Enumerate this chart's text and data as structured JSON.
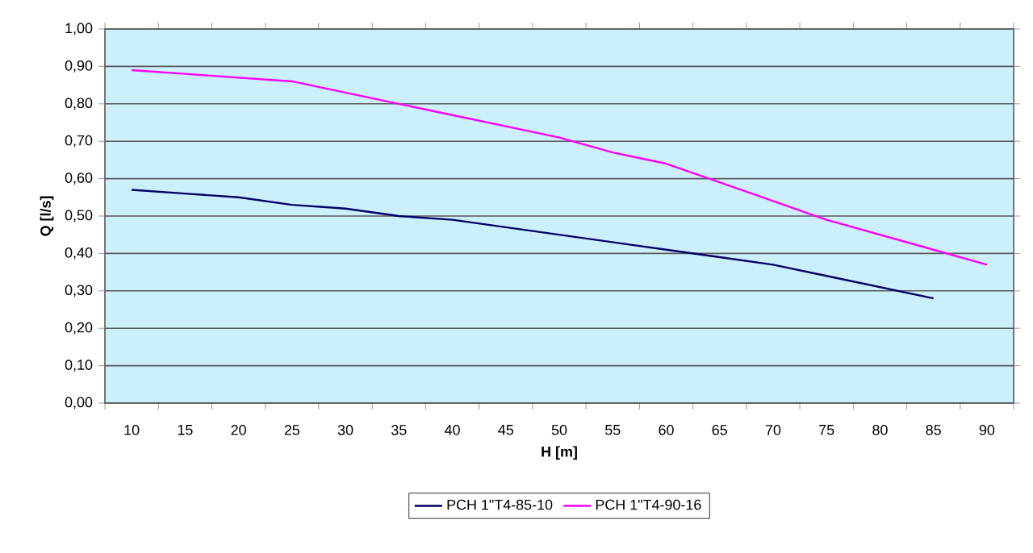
{
  "chart_data": {
    "type": "line",
    "xlabel": "H [m]",
    "ylabel": "Q [l/s]",
    "categories": [
      "10",
      "15",
      "20",
      "25",
      "30",
      "35",
      "40",
      "45",
      "50",
      "55",
      "60",
      "65",
      "70",
      "75",
      "80",
      "85",
      "90"
    ],
    "series": [
      {
        "name": "PCH 1\"T4-85-10",
        "color": "#000066",
        "values": [
          0.57,
          0.56,
          0.55,
          0.53,
          0.52,
          0.5,
          0.49,
          0.47,
          0.45,
          0.43,
          0.41,
          0.39,
          0.37,
          0.34,
          0.31,
          0.28,
          null
        ]
      },
      {
        "name": "PCH 1\"T4-90-16",
        "color": "#ff00ff",
        "values": [
          0.89,
          0.88,
          0.87,
          0.86,
          0.83,
          0.8,
          0.77,
          0.74,
          0.71,
          0.67,
          0.64,
          0.59,
          0.54,
          0.49,
          0.45,
          0.41,
          0.37
        ]
      }
    ],
    "ylim": [
      0,
      1
    ],
    "yticks": [
      {
        "value": 0,
        "label": "0,00"
      },
      {
        "value": 0.1,
        "label": "0,10"
      },
      {
        "value": 0.2,
        "label": "0,20"
      },
      {
        "value": 0.3,
        "label": "0,30"
      },
      {
        "value": 0.4,
        "label": "0,40"
      },
      {
        "value": 0.5,
        "label": "0,50"
      },
      {
        "value": 0.6,
        "label": "0,60"
      },
      {
        "value": 0.7,
        "label": "0,70"
      },
      {
        "value": 0.8,
        "label": "0,80"
      },
      {
        "value": 0.9,
        "label": "0,90"
      },
      {
        "value": 1,
        "label": "1,00"
      }
    ],
    "grid": "y",
    "legend": "bottom",
    "marker": "none",
    "line_style": "solid"
  }
}
